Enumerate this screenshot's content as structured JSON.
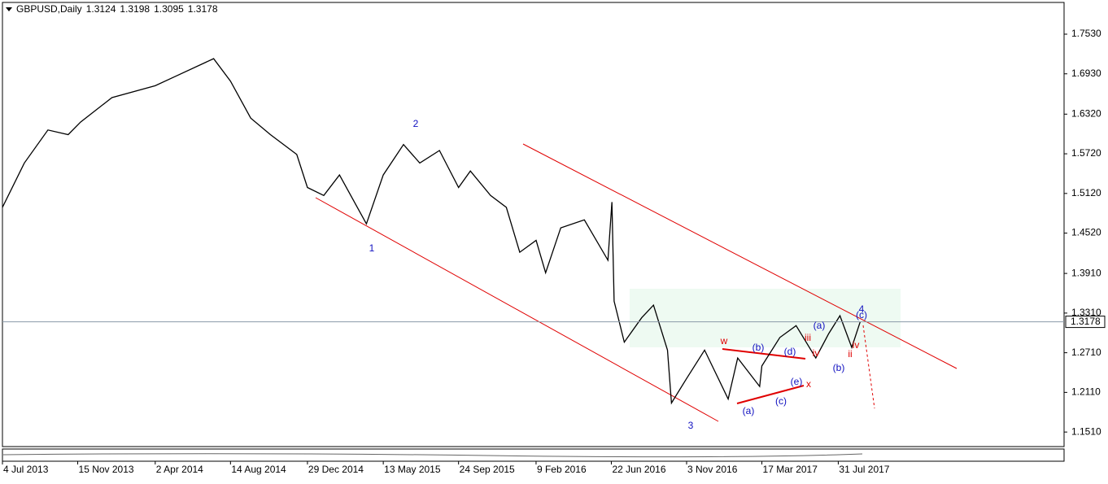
{
  "chart_data": {
    "type": "line",
    "title": "GBPUSD,Daily",
    "ohlc": [
      1.3124,
      1.3198,
      1.3095,
      1.3178
    ],
    "color": "#000000",
    "x": [
      "4 Jul 2013",
      "12 Aug 2013",
      "23 Sep 2013",
      "29 Oct 2013",
      "20 Nov 2013",
      "15 Jan 2014",
      "2 Apr 2014",
      "5 May 2014",
      "15 Jul 2014",
      "14 Aug 2014",
      "19 Sep 2014",
      "24 Oct 2014",
      "10 Dec 2014",
      "29 Dec 2014",
      "27 Jan 2015",
      "24 Feb 2015",
      "13 Apr 2015",
      "13 May 2015",
      "18 Jun 2015",
      "17 Jul 2015",
      "21 Aug 2015",
      "24 Sep 2015",
      "15 Oct 2015",
      "20 Nov 2015",
      "18 Dec 2015",
      "11 Jan 2016",
      "9 Feb 2016",
      "26 Feb 2016",
      "24 Mar 2016",
      "5 May 2016",
      "16 Jun 2016",
      "23 Jun 2016",
      "27 Jun 2016",
      "15 Jul 2016",
      "15 Aug 2016",
      "5 Sep 2016",
      "30 Sep 2016",
      "7 Oct 2016",
      "3 Nov 2016",
      "5 Dec 2016",
      "16 Jan 2017",
      "2 Feb 2017",
      "13 Mar 2017",
      "17 Mar 2017",
      "18 Apr 2017",
      "17 May 2017",
      "21 Jun 2017",
      "14 Jul 2017",
      "3 Aug 2017",
      "24 Aug 2017",
      "8 Sep 2017"
    ],
    "values": [
      1.491,
      1.558,
      1.608,
      1.601,
      1.62,
      1.657,
      1.675,
      1.688,
      1.716,
      1.682,
      1.626,
      1.601,
      1.571,
      1.521,
      1.509,
      1.54,
      1.466,
      1.54,
      1.586,
      1.558,
      1.577,
      1.521,
      1.546,
      1.509,
      1.491,
      1.423,
      1.441,
      1.392,
      1.46,
      1.472,
      1.411,
      1.499,
      1.349,
      1.287,
      1.324,
      1.343,
      1.275,
      1.195,
      1.232,
      1.275,
      1.201,
      1.263,
      1.22,
      1.251,
      1.294,
      1.312,
      1.263,
      1.3,
      1.327,
      1.279,
      1.3178
    ],
    "xlim": [
      "4 Jul 2013",
      "6 Sep 2018"
    ],
    "xticks": [
      "4 Jul 2013",
      "15 Nov 2013",
      "2 Apr 2014",
      "14 Aug 2014",
      "29 Dec 2014",
      "13 May 2015",
      "24 Sep 2015",
      "9 Feb 2016",
      "22 Jun 2016",
      "3 Nov 2016",
      "17 Mar 2017",
      "31 Jul 2017"
    ],
    "ylim": [
      1.129,
      1.801
    ],
    "yticks": [
      {
        "value": 1.151,
        "label": "1.1510"
      },
      {
        "value": 1.211,
        "label": "1.2110"
      },
      {
        "value": 1.271,
        "label": "1.2710"
      },
      {
        "value": 1.331,
        "label": "1.3310"
      },
      {
        "value": 1.391,
        "label": "1.3910"
      },
      {
        "value": 1.452,
        "label": "1.4520"
      },
      {
        "value": 1.512,
        "label": "1.5120"
      },
      {
        "value": 1.572,
        "label": "1.5720"
      },
      {
        "value": 1.632,
        "label": "1.6320"
      },
      {
        "value": 1.693,
        "label": "1.6930"
      },
      {
        "value": 1.753,
        "label": "1.7530"
      }
    ],
    "annotations": [
      {
        "text": "1",
        "color": "#1010c0"
      },
      {
        "text": "2",
        "color": "#1010c0"
      },
      {
        "text": "3",
        "color": "#1010c0"
      },
      {
        "text": "4",
        "color": "#1010c0"
      },
      {
        "text": "w",
        "color": "#e00000"
      },
      {
        "text": "x",
        "color": "#e00000"
      },
      {
        "text": "(a)",
        "color": "#1010c0"
      },
      {
        "text": "(b)",
        "color": "#1010c0"
      },
      {
        "text": "(c)",
        "color": "#1010c0"
      },
      {
        "text": "(d)",
        "color": "#1010c0"
      },
      {
        "text": "(e)",
        "color": "#1010c0"
      },
      {
        "text": "(a)",
        "color": "#1010c0"
      },
      {
        "text": "(b)",
        "color": "#1010c0"
      },
      {
        "text": "(c)",
        "color": "#1010c0"
      },
      {
        "text": "iii",
        "color": "#e00000"
      },
      {
        "text": "iv",
        "color": "#e00000"
      },
      {
        "text": "ii",
        "color": "#e00000"
      },
      {
        "text": "iv",
        "color": "#e00000"
      }
    ]
  }
}
